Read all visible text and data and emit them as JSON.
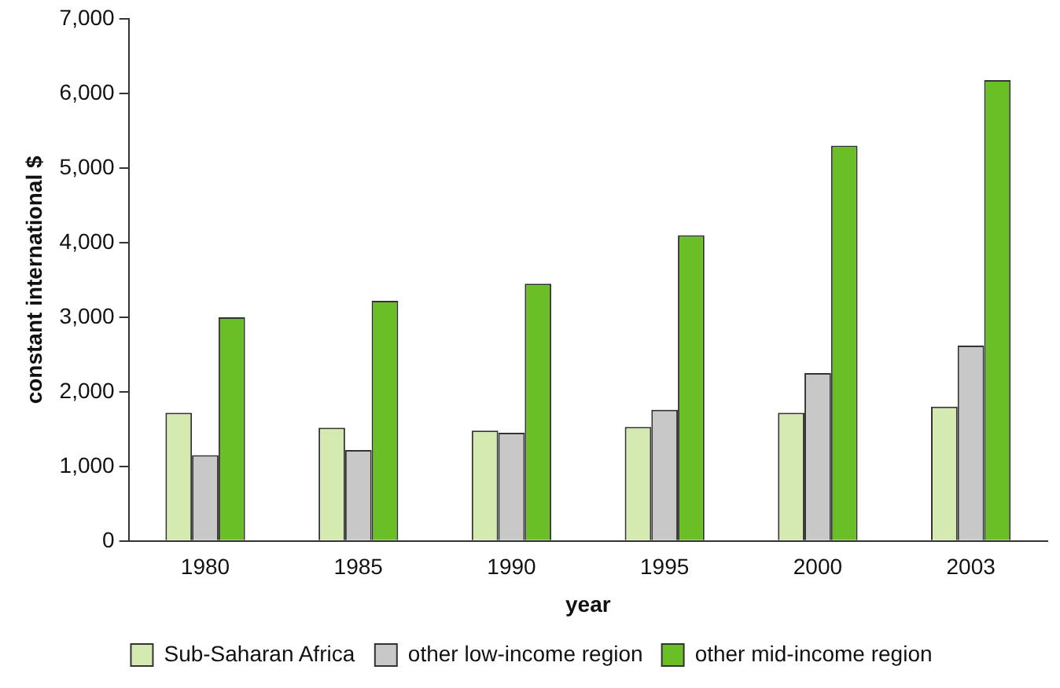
{
  "chart_data": {
    "type": "bar",
    "xlabel": "year",
    "ylabel": "constant international $",
    "categories": [
      "1980",
      "1985",
      "1990",
      "1995",
      "2000",
      "2003"
    ],
    "series": [
      {
        "name": "Sub-Saharan Africa",
        "color": "#d4eab0",
        "values": [
          1720,
          1520,
          1480,
          1530,
          1720,
          1800
        ]
      },
      {
        "name": "other low-income region",
        "color": "#c8c8c8",
        "values": [
          1150,
          1220,
          1450,
          1760,
          2250,
          2620
        ]
      },
      {
        "name": "other mid-income region",
        "color": "#6abf27",
        "values": [
          3000,
          3220,
          3450,
          4100,
          5300,
          6180
        ]
      }
    ],
    "ylim": [
      0,
      7000
    ],
    "yticks": [
      {
        "value": 0,
        "label": "0"
      },
      {
        "value": 1000,
        "label": "1,000"
      },
      {
        "value": 2000,
        "label": "2,000"
      },
      {
        "value": 3000,
        "label": "3,000"
      },
      {
        "value": 4000,
        "label": "4,000"
      },
      {
        "value": 5000,
        "label": "5,000"
      },
      {
        "value": 6000,
        "label": "6,000"
      },
      {
        "value": 7000,
        "label": "7,000"
      }
    ],
    "grid": false,
    "legend": "bottom"
  }
}
